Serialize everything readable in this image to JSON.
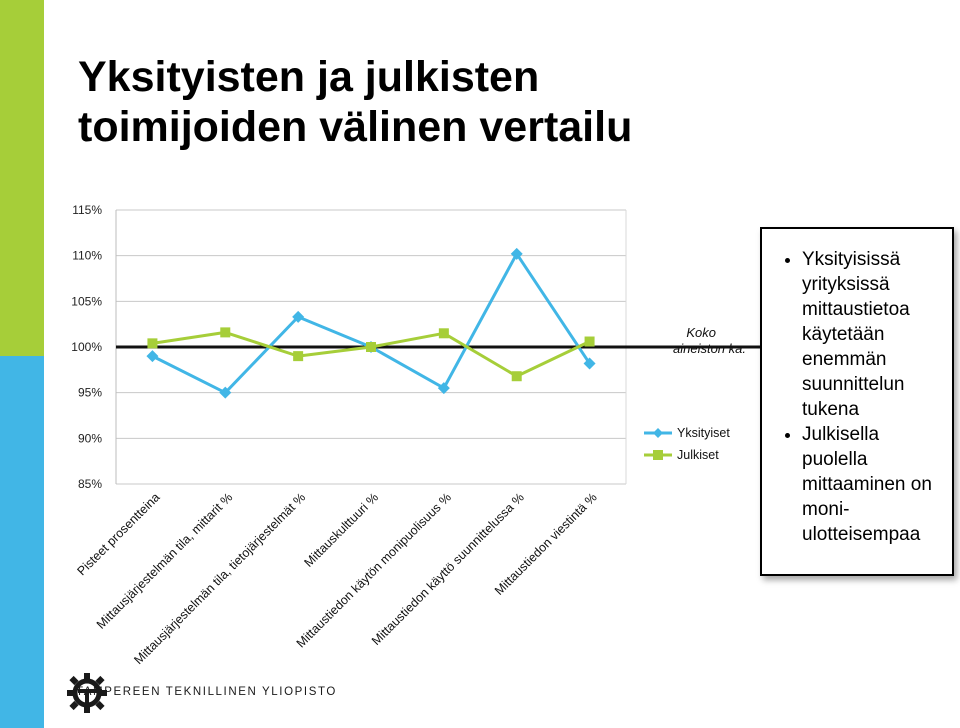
{
  "slide": {
    "title_lines": [
      "Yksityisten ja julkisten",
      "toimijoiden välinen vertailu"
    ],
    "accent_colors": {
      "green": "#a6ce39",
      "blue": "#41b6e6"
    }
  },
  "chart_data": {
    "type": "line",
    "categories": [
      "Pisteet prosentteina",
      "Mittausjärjestelmän tila, mittarit %",
      "Mittausjärjestelmän tila, tietojärjestelmät %",
      "Mittauskulttuuri %",
      "Mittaustiedon käytön monipuolisuus %",
      "Mittaustiedon käyttö suunnittelussa %",
      "Mittaustiedon viestintä %"
    ],
    "series": [
      {
        "name": "Yksityiset",
        "color": "#41b6e6",
        "marker": "diamond",
        "values": [
          99.0,
          95.0,
          103.3,
          100.0,
          95.5,
          110.2,
          98.2
        ]
      },
      {
        "name": "Julkiset",
        "color": "#a6ce39",
        "marker": "square",
        "values": [
          100.4,
          101.6,
          99.0,
          100.0,
          101.5,
          96.8,
          100.6
        ]
      }
    ],
    "reference_line": {
      "value": 100,
      "label": "Koko aineiston ka."
    },
    "yticks": [
      "115%",
      "110%",
      "105%",
      "100%",
      "95%",
      "90%",
      "85%"
    ],
    "ylim": [
      85,
      115
    ],
    "grid": true,
    "legend_position": "right"
  },
  "note_box": {
    "bullets": [
      [
        "Yksityisissä",
        "yrityksissä",
        "mittaustietoa",
        "käytetään",
        "enemmän",
        "suunnittelun",
        "tukena"
      ],
      [
        "Julkisella",
        "puolella",
        "mittaaminen on",
        "moni-",
        "ulotteisempaa"
      ]
    ]
  },
  "footer": {
    "org_name": "TAMPEREEN TEKNILLINEN YLIOPISTO",
    "logo_icon": "tut-gear-logo-icon"
  }
}
